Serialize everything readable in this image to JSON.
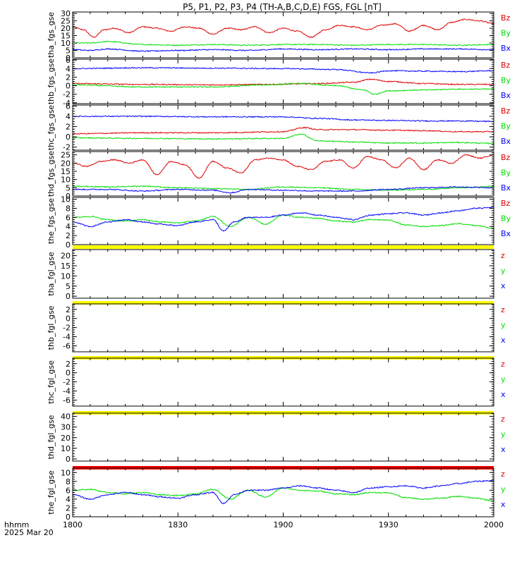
{
  "chart_data": {
    "type": "line",
    "title": "P5, P1, P2, P3, P4 (TH-A,B,C,D,E) FGS, FGL [nT]",
    "footer": {
      "time_label": "hhmm",
      "date_label": "2025 Mar 20"
    },
    "x": {
      "min": 0,
      "max": 120,
      "ticks": [
        0,
        30,
        60,
        90,
        120
      ],
      "tick_labels": [
        "1800",
        "1830",
        "1900",
        "1930",
        "2000"
      ]
    },
    "colors": {
      "x": "#0000ff",
      "y": "#00dd00",
      "z": "#dd0000",
      "bar_yellow": "#ffff00",
      "bar_red": "#ff0000"
    },
    "panels": [
      {
        "ylabel": "tha_fgs_gse",
        "ylim": [
          0,
          31
        ],
        "yticks": [
          0,
          5,
          10,
          15,
          20,
          25,
          30
        ],
        "legend": [
          "Bz",
          "By",
          "Bx"
        ],
        "series": [
          {
            "component": "z",
            "name": "Bz",
            "t": [
              0,
              3,
              6,
              9,
              12,
              16,
              20,
              24,
              28,
              32,
              36,
              40,
              44,
              48,
              52,
              56,
              60,
              64,
              68,
              72,
              76,
              80,
              84,
              88,
              92,
              96,
              100,
              104,
              108,
              112,
              116,
              120
            ],
            "v": [
              21,
              19,
              14,
              19,
              20,
              17,
              21,
              20,
              18,
              21,
              20,
              16,
              20,
              19,
              21,
              17,
              20,
              18,
              14,
              19,
              22,
              21,
              19,
              22,
              23,
              18,
              22,
              19,
              24,
              26,
              25,
              23
            ]
          },
          {
            "component": "y",
            "name": "By",
            "t": [
              0,
              5,
              10,
              20,
              30,
              40,
              50,
              60,
              70,
              80,
              90,
              100,
              110,
              120
            ],
            "v": [
              10,
              10,
              11,
              9,
              8.5,
              9,
              8.5,
              9,
              9,
              8.5,
              9,
              9,
              8.5,
              9
            ]
          },
          {
            "component": "x",
            "name": "Bx",
            "t": [
              0,
              5,
              10,
              20,
              30,
              40,
              50,
              60,
              70,
              80,
              90,
              100,
              110,
              120
            ],
            "v": [
              5.5,
              5,
              6,
              4.5,
              5,
              5.5,
              5,
              6,
              5.5,
              6,
              5.5,
              6,
              6,
              5.5
            ]
          }
        ]
      },
      {
        "ylabel": "thb_fgs_gse",
        "ylim": [
          -4.2,
          6.2
        ],
        "yticks": [
          -4,
          -2,
          0,
          2,
          4,
          6
        ],
        "legend": [
          "Bz",
          "By",
          "Bx"
        ],
        "series": [
          {
            "component": "z",
            "name": "Bz",
            "t": [
              0,
              20,
              40,
              55,
              70,
              80,
              85,
              90,
              100,
              110,
              120
            ],
            "v": [
              0.5,
              0.3,
              0.2,
              0.3,
              0.5,
              0.8,
              1.5,
              1,
              0.5,
              0.3,
              0.3
            ]
          },
          {
            "component": "y",
            "name": "By",
            "t": [
              0,
              20,
              40,
              55,
              65,
              75,
              83,
              86,
              90,
              100,
              110,
              120
            ],
            "v": [
              0.2,
              -0.3,
              -0.3,
              0.2,
              0.5,
              0,
              -1,
              -2,
              -1.2,
              -1,
              -0.8,
              -0.8
            ]
          },
          {
            "component": "x",
            "name": "Bx",
            "t": [
              0,
              20,
              40,
              60,
              75,
              85,
              90,
              100,
              110,
              120
            ],
            "v": [
              4,
              4.2,
              4.1,
              4,
              3.8,
              3,
              3.5,
              3.4,
              3.3,
              3.5
            ]
          }
        ]
      },
      {
        "ylabel": "thc_fgs_gse",
        "ylim": [
          -2.6,
          6.2
        ],
        "yticks": [
          -2,
          0,
          2,
          4,
          6
        ],
        "legend": [
          "Bz",
          "By",
          "Bx"
        ],
        "series": [
          {
            "component": "z",
            "name": "Bz",
            "t": [
              0,
              20,
              40,
              60,
              66,
              70,
              80,
              90,
              100,
              110,
              120
            ],
            "v": [
              0.6,
              0.8,
              0.8,
              1,
              1.8,
              1.4,
              1.4,
              1.3,
              1.2,
              1,
              1
            ]
          },
          {
            "component": "y",
            "name": "By",
            "t": [
              0,
              20,
              40,
              60,
              65,
              70,
              80,
              90,
              100,
              110,
              120
            ],
            "v": [
              -0.2,
              -0.3,
              -0.4,
              -0.3,
              0.5,
              -0.8,
              -1,
              -1.2,
              -1.2,
              -1.1,
              -1.3
            ]
          },
          {
            "component": "x",
            "name": "Bx",
            "t": [
              0,
              20,
              40,
              60,
              70,
              80,
              90,
              100,
              110,
              120
            ],
            "v": [
              4,
              4,
              3.9,
              3.9,
              3.6,
              3.3,
              3.2,
              3.1,
              3.1,
              3
            ]
          }
        ]
      },
      {
        "ylabel": "thd_fgs_gse",
        "ylim": [
          0,
          27
        ],
        "yticks": [
          0,
          5,
          10,
          15,
          20,
          25
        ],
        "legend": [
          "Bz",
          "By",
          "Bx"
        ],
        "series": [
          {
            "component": "z",
            "name": "Bz",
            "t": [
              0,
              4,
              8,
              12,
              16,
              20,
              24,
              28,
              32,
              36,
              40,
              44,
              48,
              52,
              56,
              60,
              64,
              68,
              72,
              76,
              80,
              84,
              88,
              92,
              96,
              100,
              104,
              108,
              112,
              116,
              120
            ],
            "v": [
              20,
              18,
              21,
              22,
              20,
              22,
              13,
              21,
              19,
              11,
              21,
              17,
              14,
              22,
              23,
              22,
              18,
              16,
              21,
              22,
              17,
              24,
              22,
              17,
              23,
              16,
              22,
              20,
              25,
              23,
              25
            ]
          },
          {
            "component": "y",
            "name": "By",
            "t": [
              0,
              10,
              20,
              30,
              40,
              50,
              60,
              70,
              80,
              90,
              100,
              110,
              120
            ],
            "v": [
              6,
              5.5,
              6,
              5,
              4.5,
              4,
              5.5,
              5,
              4,
              3.5,
              4,
              5,
              6
            ]
          },
          {
            "component": "x",
            "name": "Bx",
            "t": [
              0,
              10,
              20,
              30,
              40,
              45,
              50,
              60,
              70,
              80,
              90,
              100,
              110,
              120
            ],
            "v": [
              4,
              4,
              3,
              4,
              3.5,
              2,
              4,
              3.5,
              3,
              3,
              4,
              5,
              5.5,
              5
            ]
          }
        ]
      },
      {
        "ylabel": "the_fgs_gse",
        "ylim": [
          0,
          10.4
        ],
        "yticks": [
          0,
          2,
          4,
          6,
          8,
          10
        ],
        "legend": [
          "Bz",
          "By",
          "Bx"
        ],
        "series": [
          {
            "component": "y",
            "name": "By",
            "t": [
              0,
              5,
              10,
              15,
              20,
              25,
              30,
              35,
              40,
              45,
              50,
              55,
              60,
              65,
              70,
              75,
              80,
              85,
              90,
              95,
              100,
              105,
              110,
              115,
              120
            ],
            "v": [
              6,
              6.2,
              5.5,
              5.2,
              5.5,
              5,
              4.8,
              5.2,
              6.2,
              4,
              6,
              4.5,
              6.5,
              6,
              5.8,
              5.2,
              5,
              5.5,
              5.4,
              4.3,
              4,
              4.2,
              4.6,
              4.2,
              3.6
            ]
          },
          {
            "component": "x",
            "name": "Bx",
            "t": [
              0,
              5,
              10,
              15,
              20,
              25,
              30,
              35,
              40,
              43,
              46,
              50,
              55,
              60,
              65,
              70,
              75,
              80,
              85,
              90,
              95,
              100,
              105,
              110,
              115,
              120
            ],
            "v": [
              5,
              4,
              5,
              5.5,
              5,
              4.5,
              4.2,
              5,
              5.5,
              3,
              5,
              6,
              6,
              6.5,
              7,
              6.5,
              6,
              5.5,
              6.5,
              6.8,
              7,
              6.5,
              7,
              7.5,
              8,
              8.2
            ]
          }
        ]
      },
      {
        "ylabel": "tha_fgl_gse",
        "ylim": [
          -1,
          23
        ],
        "yticks": [
          0,
          5,
          10,
          15,
          20
        ],
        "legend": [
          "z",
          "y",
          "x"
        ],
        "bar": "bar_yellow",
        "series": []
      },
      {
        "ylabel": "thb_fgl_gse",
        "ylim": [
          -7.3,
          3.2
        ],
        "yticks": [
          -6,
          -4,
          -2,
          0,
          2
        ],
        "legend": [
          "z",
          "y",
          "x"
        ],
        "bar": "bar_yellow",
        "series": []
      },
      {
        "ylabel": "thc_fgl_gse",
        "ylim": [
          -7.3,
          3.2
        ],
        "yticks": [
          -6,
          -4,
          -2,
          0,
          2
        ],
        "legend": [
          "z",
          "y",
          "x"
        ],
        "bar": "bar_yellow",
        "series": []
      },
      {
        "ylabel": "thd_fgl_gse",
        "ylim": [
          -2,
          43
        ],
        "yticks": [
          0,
          10,
          20,
          30,
          40
        ],
        "legend": [
          "z",
          "y",
          "x"
        ],
        "bar": "bar_yellow",
        "series": []
      },
      {
        "ylabel": "the_fgl_gse",
        "ylim": [
          0,
          11
        ],
        "yticks": [
          0,
          2,
          4,
          6,
          8,
          10
        ],
        "legend": [
          "z",
          "y",
          "x"
        ],
        "bar": "bar_red",
        "series": [
          {
            "component": "y",
            "name": "y",
            "t": [
              0,
              5,
              10,
              15,
              20,
              25,
              30,
              35,
              40,
              45,
              50,
              55,
              60,
              65,
              70,
              75,
              80,
              85,
              90,
              95,
              100,
              105,
              110,
              115,
              120
            ],
            "v": [
              6,
              6.2,
              5.5,
              5.2,
              5.5,
              5,
              4.8,
              5.2,
              6.2,
              4,
              6,
              4.5,
              6.5,
              6,
              5.8,
              5.2,
              5,
              5.5,
              5.4,
              4.3,
              4,
              4.2,
              4.6,
              4.2,
              3.6
            ]
          },
          {
            "component": "x",
            "name": "x",
            "t": [
              0,
              5,
              10,
              15,
              20,
              25,
              30,
              35,
              40,
              43,
              46,
              50,
              55,
              60,
              65,
              70,
              75,
              80,
              85,
              90,
              95,
              100,
              105,
              110,
              115,
              120
            ],
            "v": [
              5,
              4,
              5,
              5.5,
              5,
              4.5,
              4.2,
              5,
              5.5,
              3,
              5,
              6,
              6,
              6.5,
              7,
              6.5,
              6,
              5.5,
              6.5,
              6.8,
              7,
              6.5,
              7,
              7.5,
              8,
              8.2
            ]
          }
        ]
      }
    ]
  }
}
